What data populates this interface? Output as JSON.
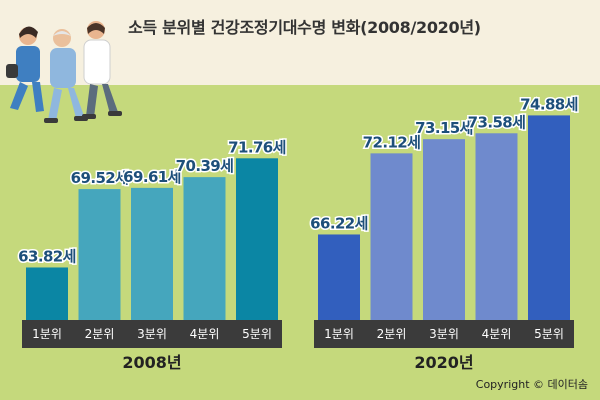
{
  "title": "소득 분위별 건강조정기대수명 변화(2008/2020년)",
  "copyright": "Copyright © 데이터솜",
  "colors": {
    "background": "#c5d97c",
    "top_band": "#f6f0df",
    "axis_strip": "#3b3b3b",
    "value_text": "#1d4f7a"
  },
  "chart_data": [
    {
      "type": "bar",
      "title": "2008년",
      "categories": [
        "1분위",
        "2분위",
        "3분위",
        "4분위",
        "5분위"
      ],
      "values": [
        63.82,
        69.52,
        69.61,
        70.39,
        71.76
      ],
      "value_labels": [
        "63.82세",
        "69.52세",
        "69.61세",
        "70.39세",
        "71.76세"
      ],
      "colors": [
        "#0b86a4",
        "#45a6bd",
        "#45a6bd",
        "#45a6bd",
        "#0b86a4"
      ],
      "ylim": [
        60,
        76
      ],
      "grid": false
    },
    {
      "type": "bar",
      "title": "2020년",
      "categories": [
        "1분위",
        "2분위",
        "3분위",
        "4분위",
        "5분위"
      ],
      "values": [
        66.22,
        72.12,
        73.15,
        73.58,
        74.88
      ],
      "value_labels": [
        "66.22세",
        "72.12세",
        "73.15세",
        "73.58세",
        "74.88세"
      ],
      "colors": [
        "#325fbe",
        "#6f8acd",
        "#6f8acd",
        "#6f8acd",
        "#325fbe"
      ],
      "ylim": [
        60,
        76
      ],
      "grid": false
    }
  ]
}
